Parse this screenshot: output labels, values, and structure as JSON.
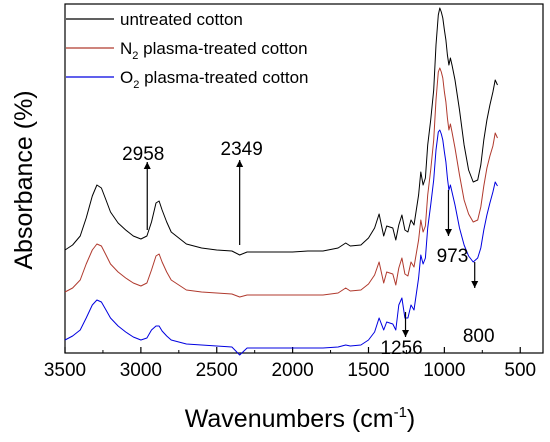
{
  "chart_data": {
    "type": "line",
    "xlabel": "Wavenumbers (cm",
    "xlabel_sup": "-1",
    "xlabel_suffix": ")",
    "ylabel": "Absorbance (%)",
    "x_reversed": true,
    "xlim": [
      3500,
      350
    ],
    "y_ticks_labeled": false,
    "grid": false,
    "legend_position": "top-right",
    "xticks": [
      3500,
      3000,
      2500,
      2000,
      1500,
      1000,
      500
    ],
    "series": [
      {
        "name_main": "untreated cotton",
        "name_sub": "",
        "name_tail": "",
        "color": "#000000",
        "points": [
          [
            3500,
            250
          ],
          [
            3450,
            245
          ],
          [
            3400,
            236
          ],
          [
            3360,
            218
          ],
          [
            3320,
            196
          ],
          [
            3290,
            185
          ],
          [
            3260,
            188
          ],
          [
            3230,
            200
          ],
          [
            3200,
            212
          ],
          [
            3150,
            223
          ],
          [
            3100,
            230
          ],
          [
            3050,
            236
          ],
          [
            3000,
            239
          ],
          [
            2960,
            236
          ],
          [
            2930,
            222
          ],
          [
            2900,
            203
          ],
          [
            2880,
            201
          ],
          [
            2860,
            210
          ],
          [
            2830,
            222
          ],
          [
            2800,
            232
          ],
          [
            2700,
            244
          ],
          [
            2600,
            248
          ],
          [
            2500,
            250
          ],
          [
            2400,
            251
          ],
          [
            2349,
            255
          ],
          [
            2300,
            252
          ],
          [
            2200,
            252
          ],
          [
            2100,
            252
          ],
          [
            2000,
            252
          ],
          [
            1900,
            251
          ],
          [
            1800,
            251
          ],
          [
            1700,
            248
          ],
          [
            1650,
            243
          ],
          [
            1620,
            246
          ],
          [
            1550,
            245
          ],
          [
            1500,
            238
          ],
          [
            1460,
            228
          ],
          [
            1430,
            214
          ],
          [
            1400,
            236
          ],
          [
            1380,
            226
          ],
          [
            1340,
            228
          ],
          [
            1320,
            240
          ],
          [
            1300,
            225
          ],
          [
            1280,
            215
          ],
          [
            1260,
            230
          ],
          [
            1240,
            232
          ],
          [
            1220,
            220
          ],
          [
            1200,
            225
          ],
          [
            1170,
            195
          ],
          [
            1155,
            172
          ],
          [
            1140,
            185
          ],
          [
            1125,
            178
          ],
          [
            1110,
            145
          ],
          [
            1090,
            120
          ],
          [
            1070,
            90
          ],
          [
            1055,
            45
          ],
          [
            1040,
            15
          ],
          [
            1030,
            8
          ],
          [
            1020,
            12
          ],
          [
            1010,
            18
          ],
          [
            1000,
            30
          ],
          [
            990,
            40
          ],
          [
            980,
            55
          ],
          [
            970,
            65
          ],
          [
            960,
            58
          ],
          [
            950,
            65
          ],
          [
            930,
            80
          ],
          [
            900,
            110
          ],
          [
            870,
            145
          ],
          [
            840,
            170
          ],
          [
            810,
            182
          ],
          [
            780,
            180
          ],
          [
            760,
            165
          ],
          [
            740,
            140
          ],
          [
            720,
            120
          ],
          [
            700,
            105
          ],
          [
            680,
            92
          ],
          [
            665,
            80
          ],
          [
            650,
            85
          ]
        ]
      },
      {
        "name_main": "N",
        "name_sub": "2",
        "name_tail": " plasma-treated cotton",
        "color": "#b03a2e",
        "points": [
          [
            3500,
            292
          ],
          [
            3450,
            288
          ],
          [
            3400,
            280
          ],
          [
            3360,
            264
          ],
          [
            3320,
            250
          ],
          [
            3290,
            244
          ],
          [
            3260,
            246
          ],
          [
            3230,
            255
          ],
          [
            3200,
            264
          ],
          [
            3150,
            272
          ],
          [
            3100,
            278
          ],
          [
            3050,
            283
          ],
          [
            3000,
            286
          ],
          [
            2960,
            283
          ],
          [
            2930,
            270
          ],
          [
            2900,
            256
          ],
          [
            2880,
            254
          ],
          [
            2860,
            262
          ],
          [
            2830,
            272
          ],
          [
            2800,
            280
          ],
          [
            2700,
            290
          ],
          [
            2600,
            292
          ],
          [
            2500,
            293
          ],
          [
            2400,
            294
          ],
          [
            2349,
            297
          ],
          [
            2300,
            295
          ],
          [
            2200,
            295
          ],
          [
            2100,
            295
          ],
          [
            2000,
            295
          ],
          [
            1900,
            295
          ],
          [
            1800,
            295
          ],
          [
            1700,
            293
          ],
          [
            1650,
            288
          ],
          [
            1620,
            291
          ],
          [
            1550,
            290
          ],
          [
            1500,
            284
          ],
          [
            1460,
            275
          ],
          [
            1430,
            262
          ],
          [
            1400,
            283
          ],
          [
            1380,
            272
          ],
          [
            1340,
            274
          ],
          [
            1320,
            285
          ],
          [
            1300,
            268
          ],
          [
            1280,
            258
          ],
          [
            1260,
            274
          ],
          [
            1240,
            276
          ],
          [
            1220,
            262
          ],
          [
            1200,
            267
          ],
          [
            1170,
            240
          ],
          [
            1155,
            220
          ],
          [
            1140,
            232
          ],
          [
            1125,
            226
          ],
          [
            1110,
            195
          ],
          [
            1090,
            170
          ],
          [
            1070,
            140
          ],
          [
            1055,
            100
          ],
          [
            1040,
            72
          ],
          [
            1030,
            68
          ],
          [
            1020,
            72
          ],
          [
            1010,
            78
          ],
          [
            1000,
            92
          ],
          [
            990,
            102
          ],
          [
            980,
            118
          ],
          [
            970,
            130
          ],
          [
            960,
            124
          ],
          [
            950,
            132
          ],
          [
            930,
            148
          ],
          [
            900,
            175
          ],
          [
            870,
            200
          ],
          [
            840,
            214
          ],
          [
            810,
            222
          ],
          [
            780,
            220
          ],
          [
            760,
            207
          ],
          [
            740,
            186
          ],
          [
            720,
            168
          ],
          [
            700,
            156
          ],
          [
            680,
            146
          ],
          [
            665,
            133
          ],
          [
            650,
            138
          ]
        ]
      },
      {
        "name_main": "O",
        "name_sub": "2",
        "name_tail": " plasma-treated cotton",
        "color": "#0000e0",
        "points": [
          [
            3500,
            340
          ],
          [
            3450,
            336
          ],
          [
            3400,
            330
          ],
          [
            3360,
            318
          ],
          [
            3320,
            305
          ],
          [
            3290,
            300
          ],
          [
            3260,
            302
          ],
          [
            3230,
            310
          ],
          [
            3200,
            318
          ],
          [
            3150,
            326
          ],
          [
            3100,
            332
          ],
          [
            3050,
            337
          ],
          [
            3000,
            340
          ],
          [
            2960,
            338
          ],
          [
            2930,
            330
          ],
          [
            2900,
            326
          ],
          [
            2880,
            326
          ],
          [
            2860,
            331
          ],
          [
            2830,
            336
          ],
          [
            2800,
            340
          ],
          [
            2700,
            344
          ],
          [
            2600,
            345
          ],
          [
            2500,
            346
          ],
          [
            2400,
            347
          ],
          [
            2349,
            355
          ],
          [
            2300,
            348
          ],
          [
            2200,
            348
          ],
          [
            2100,
            348
          ],
          [
            2000,
            348
          ],
          [
            1900,
            348
          ],
          [
            1800,
            348
          ],
          [
            1700,
            347
          ],
          [
            1650,
            345
          ],
          [
            1620,
            346
          ],
          [
            1550,
            345
          ],
          [
            1500,
            340
          ],
          [
            1460,
            332
          ],
          [
            1430,
            318
          ],
          [
            1400,
            330
          ],
          [
            1380,
            322
          ],
          [
            1340,
            324
          ],
          [
            1320,
            330
          ],
          [
            1300,
            305
          ],
          [
            1280,
            298
          ],
          [
            1260,
            318
          ],
          [
            1240,
            318
          ],
          [
            1220,
            305
          ],
          [
            1200,
            310
          ],
          [
            1170,
            278
          ],
          [
            1155,
            255
          ],
          [
            1140,
            264
          ],
          [
            1125,
            258
          ],
          [
            1110,
            228
          ],
          [
            1090,
            205
          ],
          [
            1070,
            180
          ],
          [
            1055,
            150
          ],
          [
            1040,
            132
          ],
          [
            1030,
            130
          ],
          [
            1020,
            134
          ],
          [
            1010,
            140
          ],
          [
            1000,
            152
          ],
          [
            990,
            162
          ],
          [
            980,
            178
          ],
          [
            970,
            190
          ],
          [
            960,
            185
          ],
          [
            950,
            192
          ],
          [
            930,
            205
          ],
          [
            900,
            228
          ],
          [
            870,
            245
          ],
          [
            840,
            256
          ],
          [
            810,
            262
          ],
          [
            780,
            258
          ],
          [
            760,
            248
          ],
          [
            740,
            230
          ],
          [
            720,
            215
          ],
          [
            700,
            203
          ],
          [
            680,
            192
          ],
          [
            665,
            182
          ],
          [
            650,
            186
          ]
        ]
      }
    ],
    "annotations": [
      {
        "label": "2958",
        "x": 2958,
        "direction": "up"
      },
      {
        "label": "2349",
        "x": 2349,
        "direction": "up"
      },
      {
        "label": "1256",
        "x": 1256,
        "direction": "down"
      },
      {
        "label": "973",
        "x": 973,
        "direction": "down"
      },
      {
        "label": "800",
        "x": 800,
        "direction": "down"
      }
    ]
  }
}
